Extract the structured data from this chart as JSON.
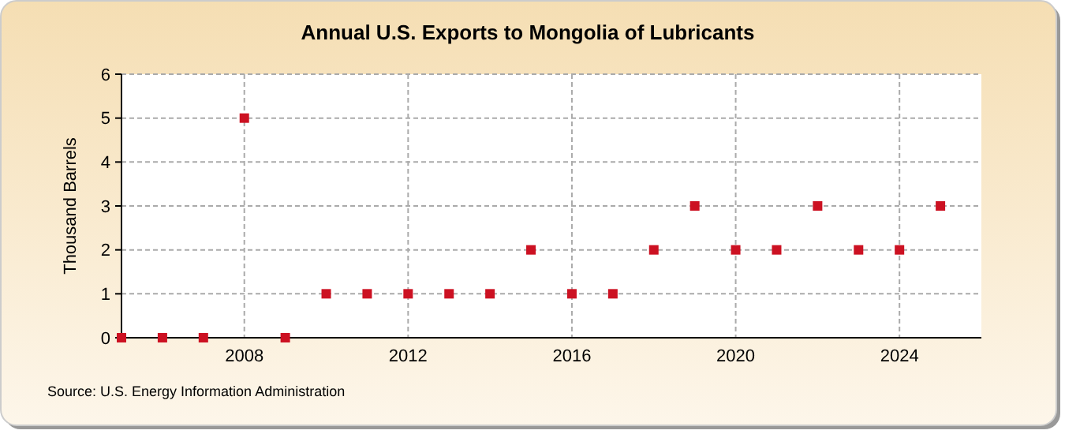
{
  "chart_data": {
    "type": "scatter",
    "title": "Annual U.S. Exports to Mongolia of Lubricants",
    "ylabel": "Thousand Barrels",
    "annotations": [
      "Source: U.S. Energy Information Administration"
    ],
    "x": [
      2005,
      2006,
      2007,
      2008,
      2009,
      2010,
      2011,
      2012,
      2013,
      2014,
      2015,
      2016,
      2017,
      2018,
      2019,
      2020,
      2021,
      2022,
      2023,
      2024,
      2025
    ],
    "series": [
      {
        "color": "#cc1122",
        "values": [
          0,
          0,
          0,
          5,
          0,
          1,
          1,
          1,
          1,
          1,
          2,
          1,
          1,
          2,
          3,
          2,
          2,
          3,
          2,
          2,
          3
        ]
      }
    ],
    "xlim": [
      2005,
      2026
    ],
    "xticks": [
      2008,
      2012,
      2016,
      2020,
      2024
    ],
    "ylim": [
      0,
      6
    ],
    "yticks": [
      0,
      1,
      2,
      3,
      4,
      5,
      6
    ],
    "grid": true,
    "marker": "square"
  }
}
